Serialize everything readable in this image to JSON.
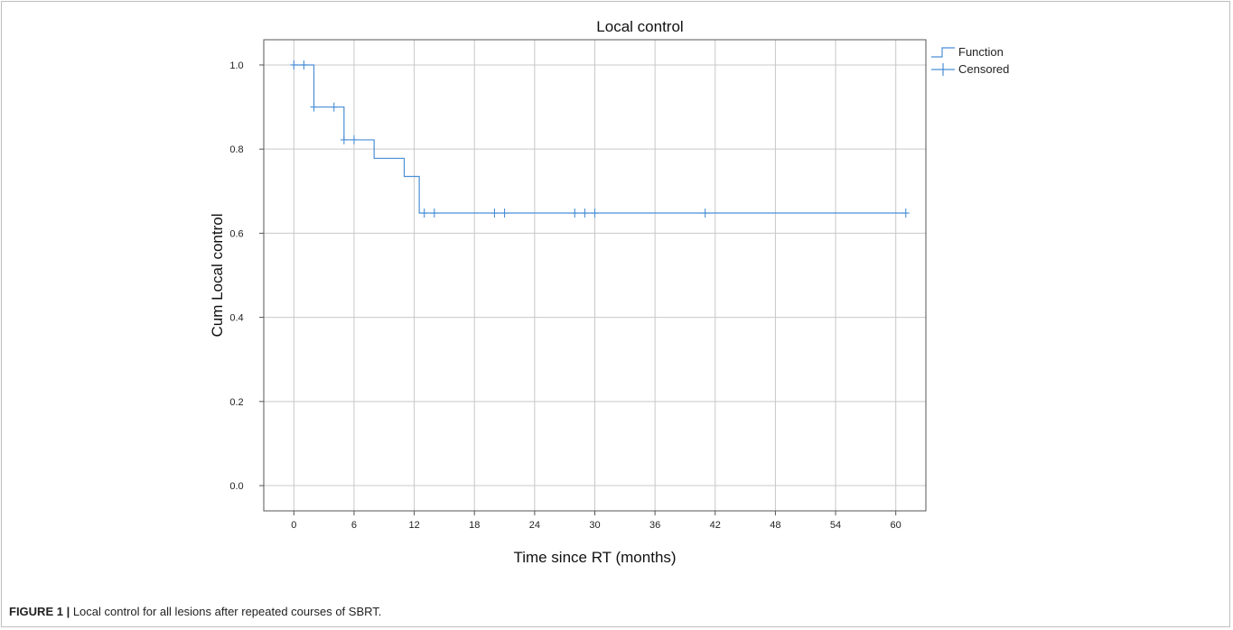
{
  "caption": {
    "label": "FIGURE 1 |",
    "text": "Local control for all lesions after repeated courses of SBRT."
  },
  "chart_data": {
    "type": "line",
    "subtype": "kaplan-meier step",
    "title": "Local control",
    "xlabel": "Time since RT (months)",
    "ylabel": "Cum Local control",
    "xlim": [
      -3,
      63
    ],
    "ylim": [
      -0.06,
      1.06
    ],
    "xticks": [
      0,
      6,
      12,
      18,
      24,
      30,
      36,
      42,
      48,
      54,
      60
    ],
    "yticks": [
      0.0,
      0.2,
      0.4,
      0.6,
      0.8,
      1.0
    ],
    "ytick_labels": [
      "0.0",
      "0.2",
      "0.4",
      "0.6",
      "0.8",
      "1.0"
    ],
    "grid": true,
    "legend_position": "top-right",
    "line_color": "#4a8fd6",
    "series": [
      {
        "name": "Function",
        "steps": [
          [
            0,
            1.0
          ],
          [
            2,
            0.9
          ],
          [
            5,
            0.822
          ],
          [
            8,
            0.778
          ],
          [
            11,
            0.735
          ],
          [
            12.5,
            0.648
          ],
          [
            61,
            0.648
          ]
        ]
      },
      {
        "name": "Censored",
        "points": [
          [
            0,
            1.0
          ],
          [
            1,
            1.0
          ],
          [
            2,
            0.9
          ],
          [
            4,
            0.9
          ],
          [
            5,
            0.822
          ],
          [
            6,
            0.822
          ],
          [
            13,
            0.648
          ],
          [
            14,
            0.648
          ],
          [
            20,
            0.648
          ],
          [
            21,
            0.648
          ],
          [
            28,
            0.648
          ],
          [
            29,
            0.648
          ],
          [
            30,
            0.648
          ],
          [
            41,
            0.648
          ],
          [
            61,
            0.648
          ]
        ]
      }
    ]
  }
}
